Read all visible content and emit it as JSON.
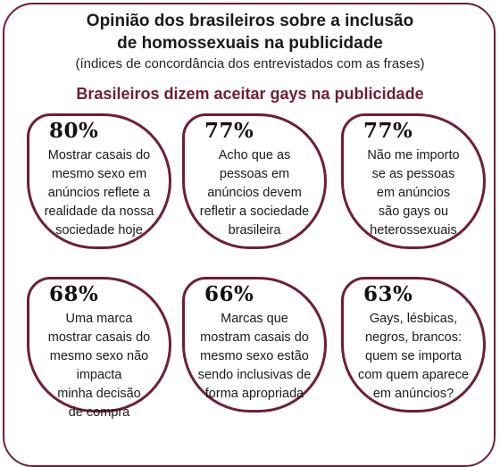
{
  "title_line1": "Opinião dos brasileiros sobre a inclusão",
  "title_line2": "de homossexuais na publicidade",
  "subtitle": "(índices de concordância dos entrevistados com as frases)",
  "section_title": "Brasileiros dizem aceitar gays na publicidade",
  "accent_color": "#6e1f33",
  "chart_data": {
    "type": "table",
    "title": "Opinião dos brasileiros sobre a inclusão de homossexuais na publicidade",
    "subtitle": "(índices de concordância dos entrevistados com as frases)",
    "cards": [
      {
        "value": 80,
        "label": "80%",
        "statement": "Mostrar casais do\nmesmo sexo em\nanúncios reflete a\nrealidade da nossa\nsociedade hoje"
      },
      {
        "value": 77,
        "label": "77%",
        "statement": "Acho que as\npessoas em\nanúncios devem\nrefletir a sociedade\nbrasileira"
      },
      {
        "value": 77,
        "label": "77%",
        "statement": "Não me importo\nse as pessoas\nem anúncios\nsão gays ou\nheterossexuais"
      },
      {
        "value": 68,
        "label": "68%",
        "statement": "Uma marca\nmostrar casais do\nmesmo sexo não\nimpacta\nminha decisão\nde compra"
      },
      {
        "value": 66,
        "label": "66%",
        "statement": "Marcas que\nmostram casais do\nmesmo sexo estão\nsendo inclusivas de\nforma apropriada"
      },
      {
        "value": 63,
        "label": "63%",
        "statement": "Gays, lésbicas,\nnegros, brancos:\nquem se importa\ncom quem aparece\nem anúncios?"
      }
    ]
  }
}
